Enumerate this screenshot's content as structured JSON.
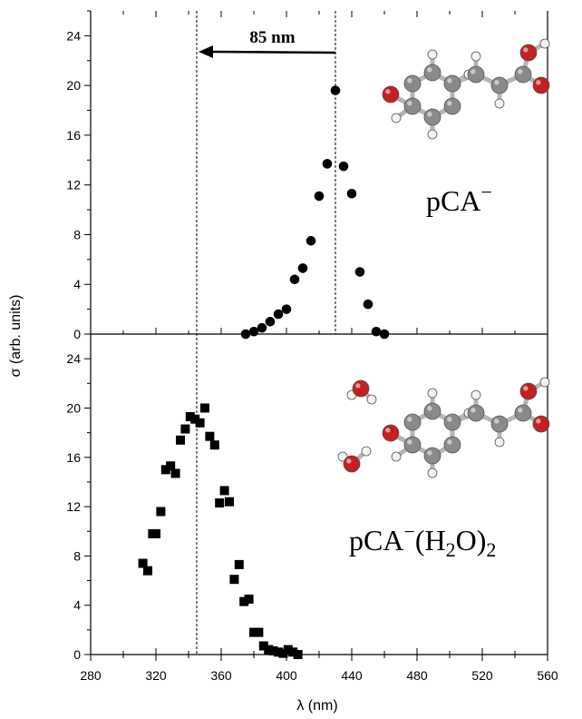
{
  "chart_data": [
    {
      "type": "scatter",
      "panel": "top",
      "marker": "circle",
      "molecule_label": {
        "main": "pCA",
        "sup": "−"
      },
      "annotation": {
        "text": "85 nm",
        "arrow_from_x": 430,
        "arrow_to_x": 345
      },
      "xlim": [
        280,
        560
      ],
      "ylim": [
        0,
        26
      ],
      "yticks": [
        0,
        4,
        8,
        12,
        16,
        20,
        24
      ],
      "x": [
        375,
        380,
        385,
        390,
        395,
        400,
        405,
        410,
        415,
        420,
        425,
        430,
        435,
        440,
        445,
        450,
        455,
        460
      ],
      "y": [
        0.0,
        0.2,
        0.5,
        1.0,
        1.6,
        2.0,
        4.4,
        5.3,
        7.5,
        11.1,
        13.7,
        19.6,
        13.5,
        11.3,
        5.0,
        2.4,
        0.2,
        0.0
      ]
    },
    {
      "type": "scatter",
      "panel": "bottom",
      "marker": "square",
      "molecule_label": {
        "main": "pCA",
        "sup": "−",
        "part2": "(H",
        "sub1": "2",
        "part3": "O)",
        "sub2": "2"
      },
      "xlim": [
        280,
        560
      ],
      "ylim": [
        0,
        26
      ],
      "yticks": [
        0,
        4,
        8,
        12,
        16,
        20,
        24
      ],
      "x": [
        312,
        315,
        318,
        320,
        323,
        326,
        329,
        332,
        335,
        338,
        341,
        344,
        347,
        350,
        353,
        356,
        359,
        362,
        365,
        368,
        371,
        374,
        377,
        380,
        383,
        386,
        389,
        392,
        395,
        398,
        401,
        404,
        407
      ],
      "y": [
        7.4,
        6.8,
        9.8,
        9.8,
        11.6,
        15.0,
        15.3,
        14.7,
        17.4,
        18.3,
        19.3,
        19.1,
        18.8,
        20.0,
        17.7,
        17.0,
        12.3,
        13.3,
        12.4,
        6.1,
        7.3,
        4.3,
        4.5,
        1.8,
        1.8,
        0.7,
        0.4,
        0.3,
        0.2,
        0.1,
        0.4,
        0.2,
        0.0
      ]
    }
  ],
  "shared": {
    "xlabel": "λ (nm)",
    "ylabel": "σ (arb. units)",
    "xticks": [
      280,
      320,
      360,
      400,
      440,
      480,
      520,
      560
    ],
    "vlines_x": [
      345,
      430
    ]
  },
  "colors": {
    "marker": "#000000",
    "oxygen": "#c42020",
    "carbon": "#8a8a8a",
    "hydrogen": "#f2f2f2"
  }
}
